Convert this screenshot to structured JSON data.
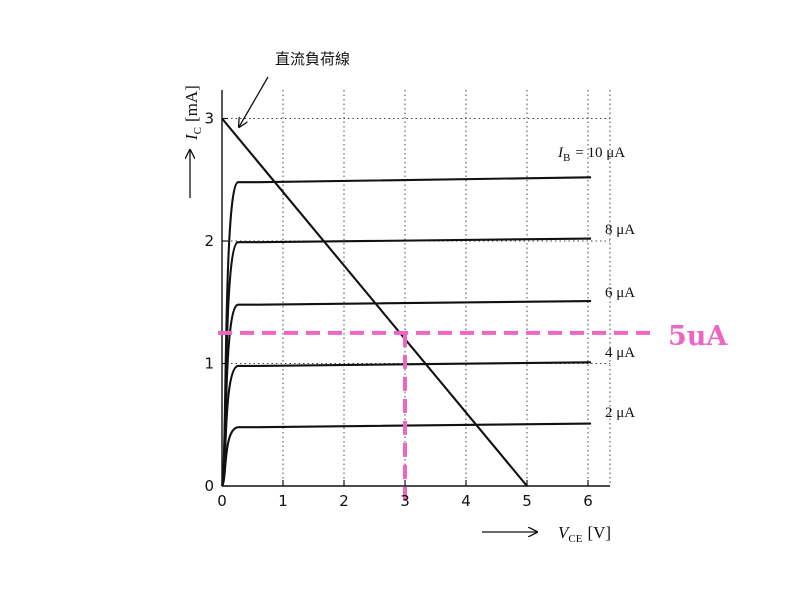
{
  "chart_data": {
    "type": "line",
    "xlabel": {
      "var": "V",
      "sub": "CE",
      "unit": "[V]"
    },
    "ylabel": {
      "var": "I",
      "sub": "C",
      "unit": "[mA]"
    },
    "xlim": [
      0,
      6
    ],
    "ylim": [
      0,
      3
    ],
    "x_ticks": [
      "0",
      "1",
      "2",
      "3",
      "4",
      "5",
      "6"
    ],
    "y_ticks": [
      "0",
      "1",
      "2",
      "3"
    ],
    "grid": "dotted",
    "series": [
      {
        "name": "2 μA",
        "values": {
          "saturation_ma": 0.48,
          "end_ma": 0.51
        }
      },
      {
        "name": "4 μA",
        "values": {
          "saturation_ma": 0.98,
          "end_ma": 1.01
        }
      },
      {
        "name": "6 μA",
        "values": {
          "saturation_ma": 1.48,
          "end_ma": 1.51
        }
      },
      {
        "name": "8 μA",
        "values": {
          "saturation_ma": 1.99,
          "end_ma": 2.02
        }
      },
      {
        "name": "10 μA",
        "values": {
          "saturation_ma": 2.48,
          "end_ma": 2.52
        }
      }
    ],
    "ib_label_prefix": {
      "var": "I",
      "sub": "B",
      "text": "= 10 μA"
    },
    "load_line": {
      "label": "直流負荷線",
      "x": [
        0,
        5
      ],
      "y": [
        3,
        0
      ]
    },
    "annotation": {
      "label": "5uA",
      "x": 3,
      "y": 1.25,
      "color": "#ee66c4"
    },
    "colors": {
      "curve": "#111111",
      "grid": "#444444",
      "highlight": "#ee66c4"
    }
  }
}
